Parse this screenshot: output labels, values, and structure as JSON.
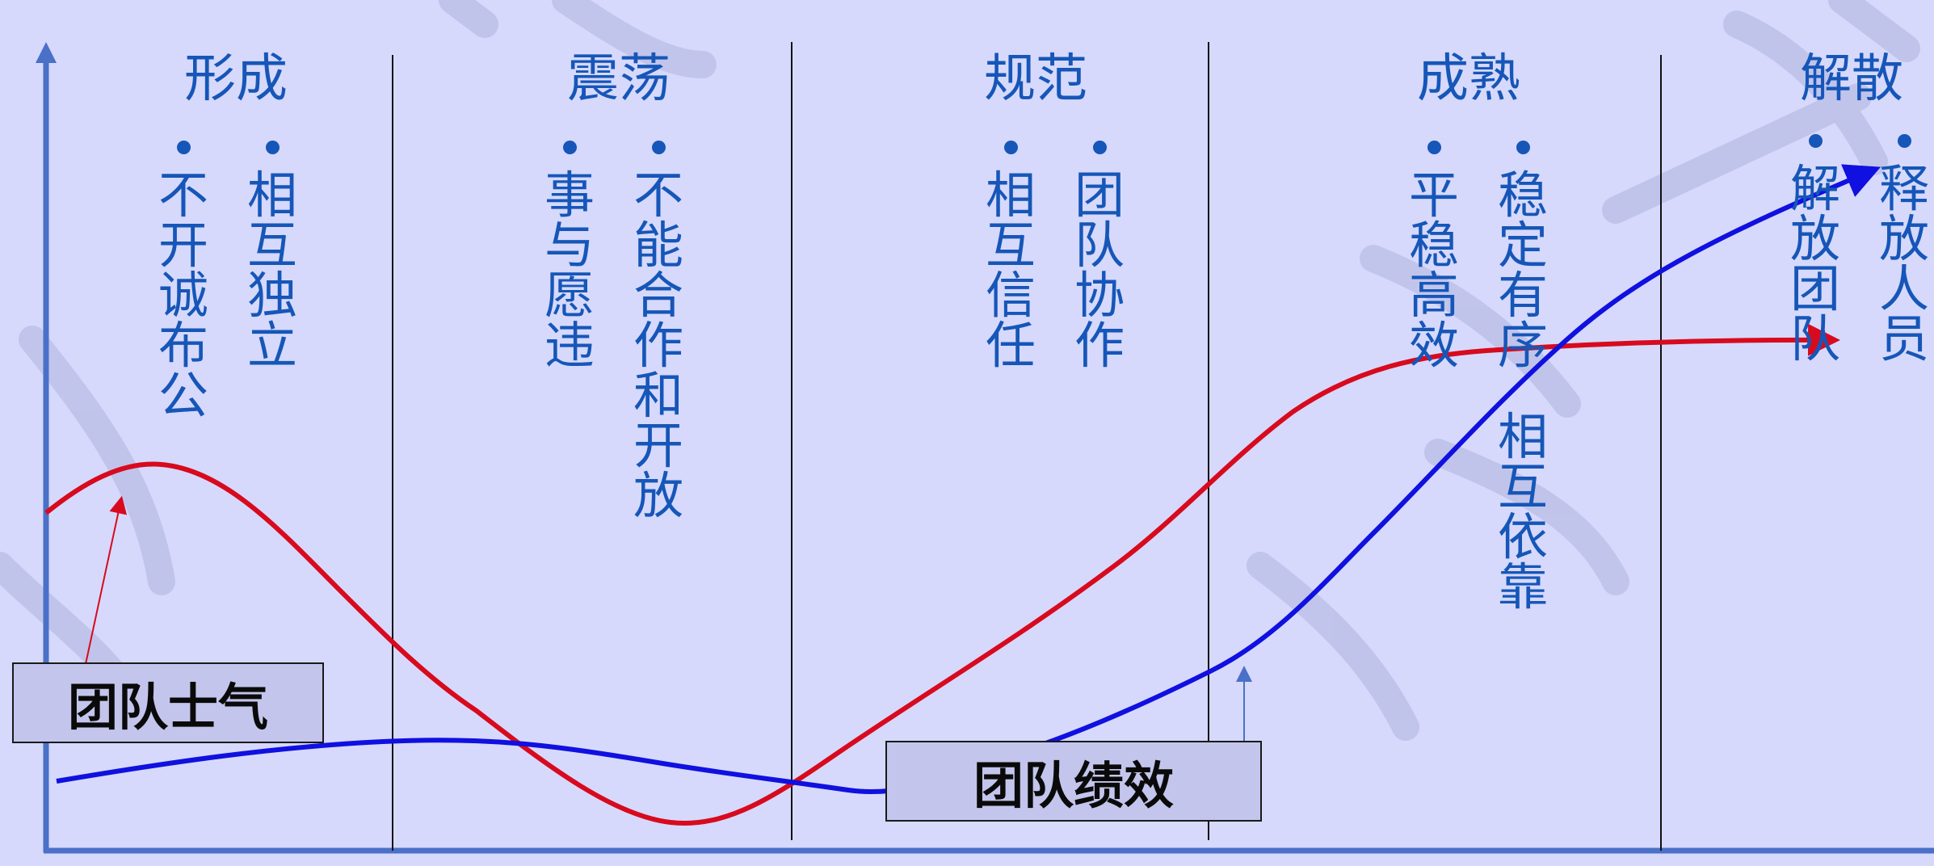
{
  "stages": [
    {
      "title": "形成",
      "items": [
        "不开诚布公",
        "相互独立"
      ]
    },
    {
      "title": "震荡",
      "items": [
        "事与愿违",
        "不能合作和开放"
      ]
    },
    {
      "title": "规范",
      "items": [
        "相互信任",
        "团队协作"
      ]
    },
    {
      "title": "成熟",
      "items": [
        "平稳高效",
        "稳定有序",
        "相互依靠"
      ]
    },
    {
      "title": "解散",
      "items": [
        "解放团队",
        "释放人员"
      ]
    }
  ],
  "labels": {
    "morale": "团队士气",
    "performance": "团队绩效"
  },
  "colors": {
    "background": "#d6d9fb",
    "stage_text": "#1656b8",
    "morale_curve": "#d80a1e",
    "performance_curve": "#1010e0",
    "axis": "#4a70c8"
  }
}
